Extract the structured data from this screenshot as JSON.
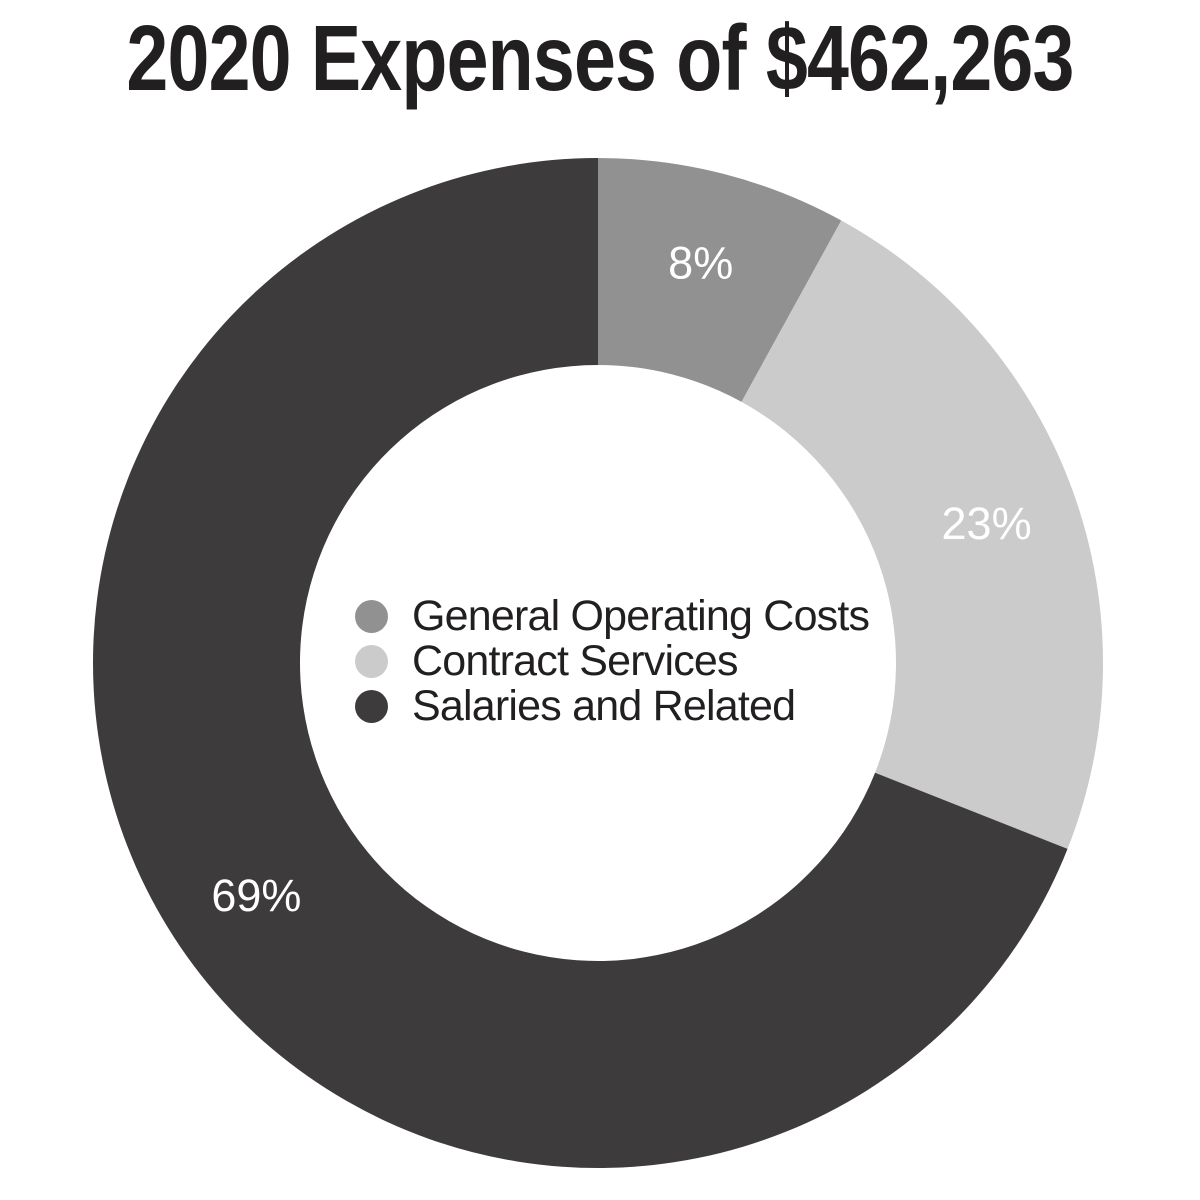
{
  "page": {
    "background_color": "#ffffff"
  },
  "chart_data": {
    "type": "pie",
    "subtype": "donut",
    "title": "2020 Expenses of $462,263",
    "total": "$462,263",
    "year": "2020",
    "units": "percent",
    "direction": "clockwise",
    "start_angle_deg": 0,
    "inner_radius_ratio": 0.59,
    "legend_position": "center-of-donut",
    "slice_label_color": "#ffffff",
    "text_color": "#221f20",
    "segments": [
      {
        "label": "General Operating Costs",
        "value": 8,
        "display": "8%",
        "color": "#919191"
      },
      {
        "label": "Contract Services",
        "value": 23,
        "display": "23%",
        "color": "#cbcbcb"
      },
      {
        "label": "Salaries and Related",
        "value": 69,
        "display": "69%",
        "color": "#3d3b3c"
      }
    ]
  }
}
